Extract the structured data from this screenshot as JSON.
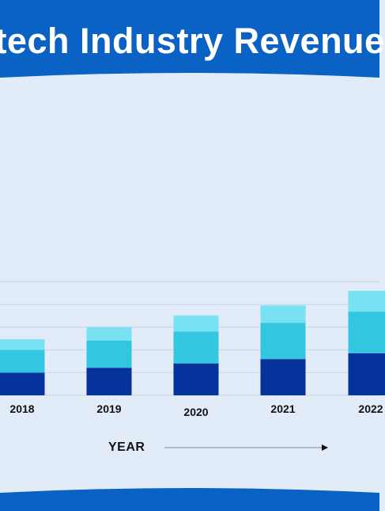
{
  "header": {
    "title": "tech Industry Revenue"
  },
  "colors": {
    "header": "#0a62c4",
    "background": "#e2ecf8",
    "gridline": "#c7d4e6",
    "segment_bottom": "#06329b",
    "segment_middle": "#33c6e0",
    "segment_top": "#78e2f3"
  },
  "chart_data": {
    "type": "bar",
    "stacked": true,
    "categories": [
      "2018",
      "2019",
      "2020",
      "2021",
      "2022"
    ],
    "series": [
      {
        "values": [
          47,
          57,
          66,
          75,
          87
        ]
      },
      {
        "values": [
          47,
          56,
          66,
          75,
          86
        ]
      },
      {
        "values": [
          22,
          28,
          33,
          36,
          43
        ]
      }
    ],
    "title": "tech Industry Revenue",
    "xlabel": "YEAR",
    "ylabel": "",
    "ylim": [
      0,
      280
    ],
    "grid": true,
    "legend": "none"
  }
}
